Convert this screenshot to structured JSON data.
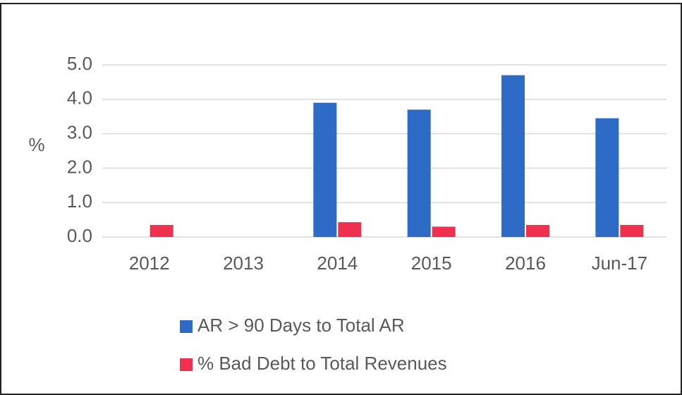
{
  "chart_data": {
    "type": "bar",
    "y_axis_label": "%",
    "categories": [
      "2012",
      "2013",
      "2014",
      "2015",
      "2016",
      "Jun-17"
    ],
    "series": [
      {
        "name": "AR > 90 Days to Total AR",
        "color": "#2e6bc6",
        "values": [
          null,
          null,
          3.9,
          3.7,
          4.7,
          3.45
        ]
      },
      {
        "name": "% Bad Debt to Total Revenues",
        "color": "#f0304f",
        "values": [
          0.35,
          null,
          0.43,
          0.3,
          0.35,
          0.35
        ]
      }
    ],
    "ylim": [
      0,
      5
    ],
    "yticks": [
      {
        "value": 0,
        "label": "0.0"
      },
      {
        "value": 1,
        "label": "1.0"
      },
      {
        "value": 2,
        "label": "2.0"
      },
      {
        "value": 3,
        "label": "3.0"
      },
      {
        "value": 4,
        "label": "4.0"
      },
      {
        "value": 5,
        "label": "5.0"
      }
    ],
    "grid": true,
    "legend": "bottom"
  }
}
